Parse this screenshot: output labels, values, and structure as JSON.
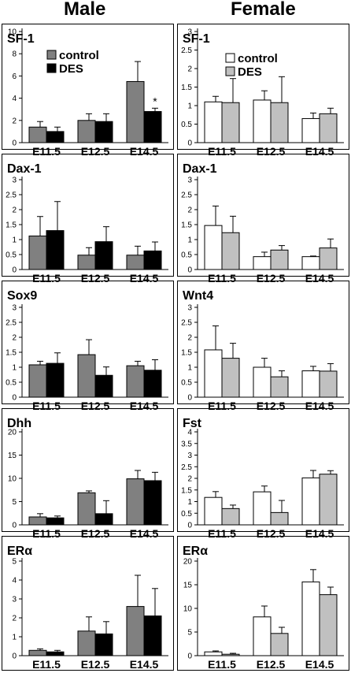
{
  "headings": {
    "male": "Male",
    "female": "Female"
  },
  "colors": {
    "male_control": "#808080",
    "male_des": "#000000",
    "female_control": "#ffffff",
    "female_des": "#c0c0c0"
  },
  "chart_data": [
    {
      "type": "bar",
      "title": "SF-1",
      "panel": "male-sf1",
      "categories": [
        "E11.5",
        "E12.5",
        "E14.5"
      ],
      "legend": [
        "control",
        "DES"
      ],
      "annotations": [
        {
          "category": "E14.5",
          "series": 1,
          "text": "*"
        }
      ],
      "ylim": [
        0,
        10
      ],
      "yticks": [
        0,
        2,
        4,
        6,
        8,
        10
      ],
      "series": [
        {
          "name": "control",
          "values": [
            1.4,
            2.0,
            5.5
          ],
          "errors": [
            0.5,
            0.6,
            1.8
          ]
        },
        {
          "name": "DES",
          "values": [
            1.0,
            1.9,
            2.8
          ],
          "errors": [
            0.4,
            0.7,
            0.3
          ]
        }
      ]
    },
    {
      "type": "bar",
      "title": "SF-1",
      "panel": "female-sf1",
      "categories": [
        "E11.5",
        "E12.5",
        "E14.5"
      ],
      "legend": [
        "control",
        "DES"
      ],
      "ylim": [
        0,
        3
      ],
      "yticks": [
        0,
        0.5,
        1,
        1.5,
        2,
        2.5,
        3
      ],
      "series": [
        {
          "name": "control",
          "values": [
            1.1,
            1.15,
            0.65
          ],
          "errors": [
            0.15,
            0.25,
            0.15
          ]
        },
        {
          "name": "DES",
          "values": [
            1.08,
            1.08,
            0.78
          ],
          "errors": [
            0.65,
            0.7,
            0.15
          ]
        }
      ]
    },
    {
      "type": "bar",
      "title": "Dax-1",
      "panel": "male-dax1",
      "categories": [
        "E11.5",
        "E12.5",
        "E14.5"
      ],
      "ylim": [
        0,
        3
      ],
      "yticks": [
        0,
        0.5,
        1,
        1.5,
        2,
        2.5,
        3
      ],
      "series": [
        {
          "values": [
            1.12,
            0.48,
            0.48
          ],
          "errors": [
            0.65,
            0.25,
            0.3
          ]
        },
        {
          "values": [
            1.3,
            0.93,
            0.62
          ],
          "errors": [
            0.97,
            0.5,
            0.3
          ]
        }
      ]
    },
    {
      "type": "bar",
      "title": "Dax-1",
      "panel": "female-dax1",
      "categories": [
        "E11.5",
        "E12.5",
        "E14.5"
      ],
      "ylim": [
        0,
        3
      ],
      "yticks": [
        0,
        0.5,
        1,
        1.5,
        2,
        2.5,
        3
      ],
      "series": [
        {
          "values": [
            1.47,
            0.43,
            0.43
          ],
          "errors": [
            0.65,
            0.15,
            0.02
          ]
        },
        {
          "values": [
            1.23,
            0.65,
            0.72
          ],
          "errors": [
            0.55,
            0.15,
            0.3
          ]
        }
      ]
    },
    {
      "type": "bar",
      "title": "Sox9",
      "panel": "male-sox9",
      "categories": [
        "E11.5",
        "E12.5",
        "E14.5"
      ],
      "ylim": [
        0,
        3
      ],
      "yticks": [
        0,
        0.5,
        1,
        1.5,
        2,
        2.5,
        3
      ],
      "series": [
        {
          "values": [
            1.08,
            1.42,
            1.05
          ],
          "errors": [
            0.12,
            0.5,
            0.15
          ]
        },
        {
          "values": [
            1.13,
            0.73,
            0.9
          ],
          "errors": [
            0.35,
            0.28,
            0.35
          ]
        }
      ]
    },
    {
      "type": "bar",
      "title": "Wnt4",
      "panel": "female-wnt4",
      "categories": [
        "E11.5",
        "E12.5",
        "E14.5"
      ],
      "ylim": [
        0,
        3
      ],
      "yticks": [
        0,
        0.5,
        1,
        1.5,
        2,
        2.5,
        3
      ],
      "series": [
        {
          "values": [
            1.58,
            1.0,
            0.88
          ],
          "errors": [
            0.8,
            0.3,
            0.15
          ]
        },
        {
          "values": [
            1.3,
            0.68,
            0.87
          ],
          "errors": [
            0.5,
            0.2,
            0.25
          ]
        }
      ]
    },
    {
      "type": "bar",
      "title": "Dhh",
      "panel": "male-dhh",
      "categories": [
        "E11.5",
        "E12.5",
        "E14.5"
      ],
      "ylim": [
        0,
        20
      ],
      "yticks": [
        0,
        5,
        10,
        15,
        20
      ],
      "series": [
        {
          "values": [
            1.7,
            6.9,
            9.9
          ],
          "errors": [
            0.7,
            0.4,
            1.8
          ]
        },
        {
          "values": [
            1.5,
            2.4,
            9.5
          ],
          "errors": [
            0.4,
            2.8,
            1.8
          ]
        }
      ]
    },
    {
      "type": "bar",
      "title": "Fst",
      "panel": "female-fst",
      "categories": [
        "E11.5",
        "E12.5",
        "E14.5"
      ],
      "ylim": [
        0,
        4
      ],
      "yticks": [
        0,
        0.5,
        1,
        1.5,
        2,
        2.5,
        3,
        3.5,
        4
      ],
      "series": [
        {
          "values": [
            1.18,
            1.42,
            2.02
          ],
          "errors": [
            0.25,
            0.25,
            0.32
          ]
        },
        {
          "values": [
            0.7,
            0.53,
            2.18
          ],
          "errors": [
            0.15,
            0.52,
            0.15
          ]
        }
      ]
    },
    {
      "type": "bar",
      "title": "ERα",
      "panel": "male-era",
      "categories": [
        "E11.5",
        "E12.5",
        "E14.5"
      ],
      "ylim": [
        0,
        5
      ],
      "yticks": [
        0,
        1,
        2,
        3,
        4,
        5
      ],
      "series": [
        {
          "values": [
            0.28,
            1.3,
            2.6
          ],
          "errors": [
            0.08,
            0.75,
            1.65
          ]
        },
        {
          "values": [
            0.2,
            1.15,
            2.1
          ],
          "errors": [
            0.08,
            0.65,
            1.45
          ]
        }
      ]
    },
    {
      "type": "bar",
      "title": "ERα",
      "panel": "female-era",
      "categories": [
        "E11.5",
        "E12.5",
        "E14.5"
      ],
      "ylim": [
        0,
        20
      ],
      "yticks": [
        0,
        5,
        10,
        15,
        20
      ],
      "series": [
        {
          "values": [
            0.8,
            8.2,
            15.6
          ],
          "errors": [
            0.2,
            2.3,
            2.6
          ]
        },
        {
          "values": [
            0.3,
            4.7,
            12.9
          ],
          "errors": [
            0.2,
            1.3,
            1.6
          ]
        }
      ]
    }
  ]
}
